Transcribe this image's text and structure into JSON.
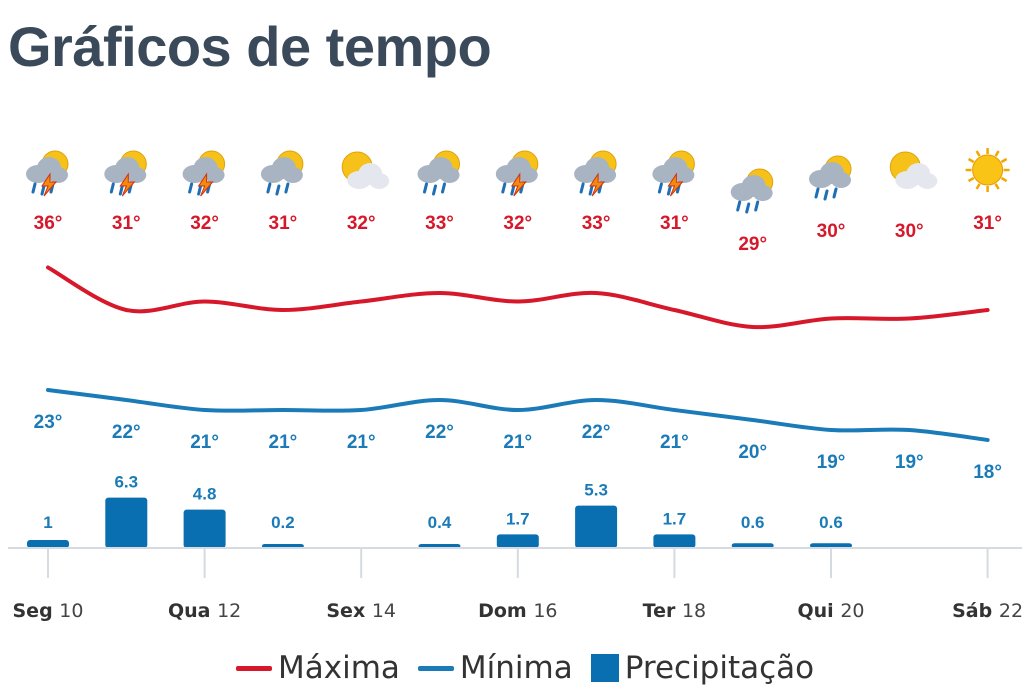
{
  "page": {
    "title": "Gráficos de tempo"
  },
  "chart_data": {
    "type": "line",
    "days": [
      {
        "weekday": "Seg",
        "day": "10",
        "icon": "thunderstorm-sun-icon"
      },
      {
        "weekday": "",
        "day": "",
        "icon": "thunderstorm-sun-icon"
      },
      {
        "weekday": "Qua",
        "day": "12",
        "icon": "thunderstorm-sun-icon"
      },
      {
        "weekday": "",
        "day": "",
        "icon": "rain-sun-icon"
      },
      {
        "weekday": "Sex",
        "day": "14",
        "icon": "partly-cloudy-icon"
      },
      {
        "weekday": "",
        "day": "",
        "icon": "rain-sun-icon"
      },
      {
        "weekday": "Dom",
        "day": "16",
        "icon": "thunderstorm-sun-icon"
      },
      {
        "weekday": "",
        "day": "",
        "icon": "thunderstorm-sun-icon"
      },
      {
        "weekday": "Ter",
        "day": "18",
        "icon": "thunderstorm-sun-icon"
      },
      {
        "weekday": "",
        "day": "",
        "icon": "rain-sun-icon"
      },
      {
        "weekday": "Qui",
        "day": "20",
        "icon": "rain-sun-icon"
      },
      {
        "weekday": "",
        "day": "",
        "icon": "partly-cloudy-icon"
      },
      {
        "weekday": "Sáb",
        "day": "22",
        "icon": "sun-icon"
      }
    ],
    "series": [
      {
        "name": "Máxima",
        "color": "#d7182a",
        "values": [
          36,
          31,
          32,
          31,
          32,
          33,
          32,
          33,
          31,
          29,
          30,
          30,
          31
        ]
      },
      {
        "name": "Mínima",
        "color": "#1a7bb8",
        "values": [
          23,
          22,
          21,
          21,
          21,
          22,
          21,
          22,
          21,
          20,
          19,
          19,
          18
        ]
      },
      {
        "name": "Precipitação",
        "color": "#0a6fb0",
        "type": "bar",
        "values": [
          1,
          6.3,
          4.8,
          0.2,
          0,
          0.4,
          1.7,
          5.3,
          1.7,
          0.6,
          0.6,
          0,
          0
        ]
      }
    ],
    "temp_labels": {
      "max": [
        "36°",
        "31°",
        "32°",
        "31°",
        "32°",
        "33°",
        "32°",
        "33°",
        "31°",
        "29°",
        "30°",
        "30°",
        "31°"
      ],
      "min": [
        "23°",
        "22°",
        "21°",
        "21°",
        "21°",
        "22°",
        "21°",
        "22°",
        "21°",
        "20°",
        "19°",
        "19°",
        "18°"
      ]
    },
    "precip_labels": [
      "1",
      "6.3",
      "4.8",
      "0.2",
      "",
      "0.4",
      "1.7",
      "5.3",
      "1.7",
      "0.6",
      "0.6",
      "",
      ""
    ],
    "legend": [
      {
        "label": "Máxima",
        "color": "#d7182a",
        "kind": "line"
      },
      {
        "label": "Mínima",
        "color": "#1a7bb8",
        "kind": "line"
      },
      {
        "label": "Precipitação",
        "color": "#0a6fb0",
        "kind": "box"
      }
    ],
    "legend_position": "bottom"
  }
}
